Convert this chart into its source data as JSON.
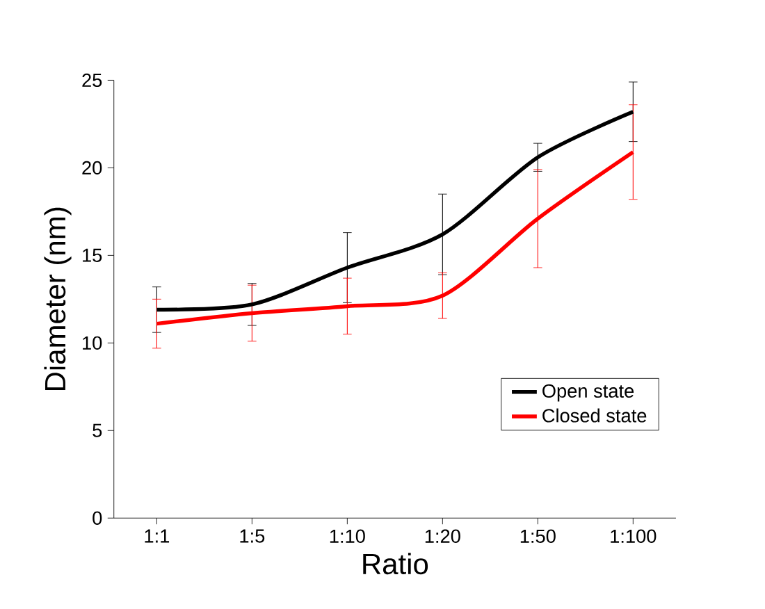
{
  "chart_data": {
    "type": "line",
    "xlabel": "Ratio",
    "ylabel": "Diameter (nm)",
    "categories": [
      "1:1",
      "1:5",
      "1:10",
      "1:20",
      "1:50",
      "1:100"
    ],
    "series": [
      {
        "name": "Open state",
        "color": "#000000",
        "values": [
          11.9,
          12.2,
          14.3,
          16.2,
          20.6,
          23.2
        ],
        "errors": [
          1.3,
          1.2,
          2.0,
          2.3,
          0.8,
          1.7
        ]
      },
      {
        "name": "Closed state",
        "color": "#ff0000",
        "values": [
          11.1,
          11.7,
          12.1,
          12.7,
          17.1,
          20.9
        ],
        "errors": [
          1.4,
          1.6,
          1.6,
          1.3,
          2.8,
          2.7
        ]
      }
    ],
    "ylim": [
      0,
      25
    ],
    "yticks": [
      0,
      5,
      10,
      15,
      20,
      25
    ],
    "grid": false,
    "legend": "bottom right",
    "marker": "none",
    "line_style": "solid"
  }
}
